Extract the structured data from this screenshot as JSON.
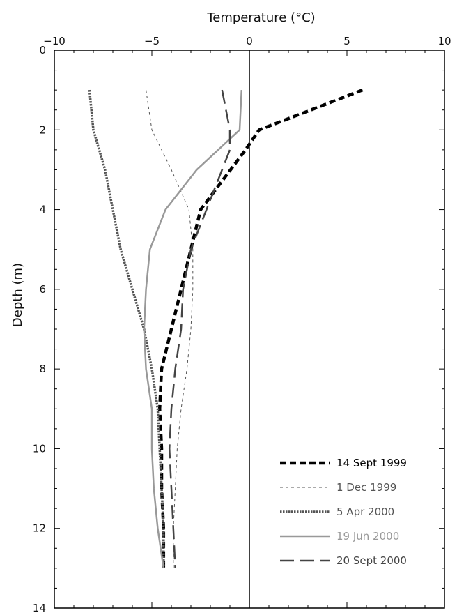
{
  "chart_data": {
    "type": "line",
    "xlabel": "Temperature (°C)",
    "ylabel": "Depth (m)",
    "xlim": [
      -10,
      10
    ],
    "ylim": [
      0,
      14
    ],
    "y_inverted": true,
    "x_axis_position": "top",
    "x_ticks": [
      -10,
      -5,
      0,
      5,
      10
    ],
    "y_ticks": [
      0,
      2,
      4,
      6,
      8,
      10,
      12,
      14
    ],
    "zero_line": true,
    "grid": false,
    "legend_position": "bottom-right",
    "series": [
      {
        "name": "14 Sept 1999",
        "color": "#000000",
        "style": "bold-dashed",
        "points": [
          [
            5.8,
            1
          ],
          [
            0.5,
            2
          ],
          [
            -0.2,
            2.5
          ],
          [
            -2.5,
            4
          ],
          [
            -3.0,
            5
          ],
          [
            -3.5,
            6
          ],
          [
            -4.0,
            7
          ],
          [
            -4.5,
            8
          ],
          [
            -4.6,
            9
          ],
          [
            -4.5,
            10
          ],
          [
            -4.5,
            11
          ],
          [
            -4.4,
            12
          ],
          [
            -4.4,
            13
          ]
        ]
      },
      {
        "name": "1 Dec 1999",
        "color": "#555555",
        "style": "thin-dashed",
        "points": [
          [
            -5.3,
            1
          ],
          [
            -5.0,
            2
          ],
          [
            -4.0,
            3
          ],
          [
            -3.1,
            4
          ],
          [
            -2.9,
            5
          ],
          [
            -2.9,
            6
          ],
          [
            -3.0,
            7
          ],
          [
            -3.2,
            8
          ],
          [
            -3.5,
            9
          ],
          [
            -3.7,
            10
          ],
          [
            -3.8,
            11
          ],
          [
            -3.9,
            12
          ],
          [
            -3.9,
            13
          ]
        ]
      },
      {
        "name": "5 Apr 2000",
        "color": "#555555",
        "style": "dotted",
        "points": [
          [
            -8.2,
            1
          ],
          [
            -8.0,
            2
          ],
          [
            -7.4,
            3
          ],
          [
            -7.0,
            4
          ],
          [
            -6.6,
            5
          ],
          [
            -6.0,
            6
          ],
          [
            -5.4,
            7
          ],
          [
            -5.0,
            8
          ],
          [
            -4.7,
            9
          ],
          [
            -4.6,
            10
          ],
          [
            -4.5,
            11
          ],
          [
            -4.4,
            12
          ],
          [
            -4.4,
            13
          ]
        ]
      },
      {
        "name": "19 Jun 2000",
        "color": "#999999",
        "style": "solid",
        "points": [
          [
            -0.4,
            1
          ],
          [
            -0.5,
            2
          ],
          [
            -2.7,
            3
          ],
          [
            -4.3,
            4
          ],
          [
            -5.1,
            5
          ],
          [
            -5.3,
            6
          ],
          [
            -5.4,
            7
          ],
          [
            -5.3,
            8
          ],
          [
            -5.0,
            9
          ],
          [
            -5.0,
            10
          ],
          [
            -4.9,
            11
          ],
          [
            -4.7,
            12
          ],
          [
            -4.4,
            13
          ]
        ]
      },
      {
        "name": "20 Sept 2000",
        "color": "#444444",
        "style": "long-dashed",
        "points": [
          [
            -1.4,
            1
          ],
          [
            -1.0,
            2
          ],
          [
            -1.0,
            2.5
          ],
          [
            -1.8,
            3.5
          ],
          [
            -3.0,
            5
          ],
          [
            -3.4,
            6
          ],
          [
            -3.5,
            7
          ],
          [
            -3.8,
            8
          ],
          [
            -4.0,
            9
          ],
          [
            -4.1,
            10
          ],
          [
            -4.0,
            11
          ],
          [
            -3.9,
            12
          ],
          [
            -3.8,
            13
          ]
        ]
      }
    ]
  }
}
